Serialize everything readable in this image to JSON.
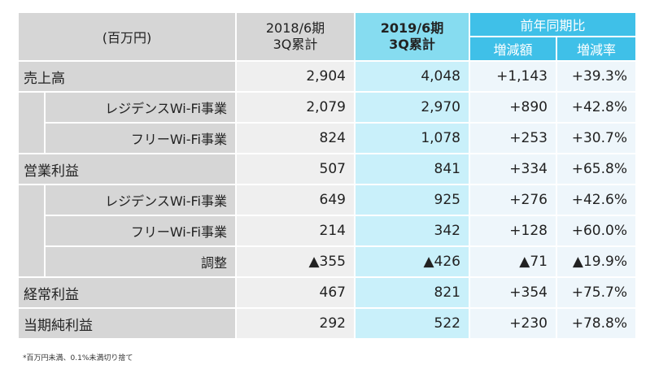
{
  "header": {
    "unit": "(百万円)",
    "prev_period": {
      "line1": "2018/6期",
      "line2": "3Q累計"
    },
    "cur_period": {
      "line1": "2019/6期",
      "line2": "3Q累計"
    },
    "yoy": "前年同期比",
    "yoy_amount": "増減額",
    "yoy_rate": "増減率"
  },
  "rows": {
    "sales": {
      "label": "売上高",
      "prev": "2,904",
      "cur": "4,048",
      "diff": "+1,143",
      "rate": "+39.3%"
    },
    "sales_residence": {
      "label": "レジデンスWi-Fi事業",
      "prev": "2,079",
      "cur": "2,970",
      "diff": "+890",
      "rate": "+42.8%"
    },
    "sales_free": {
      "label": "フリーWi-Fi事業",
      "prev": "824",
      "cur": "1,078",
      "diff": "+253",
      "rate": "+30.7%"
    },
    "op": {
      "label": "営業利益",
      "prev": "507",
      "cur": "841",
      "diff": "+334",
      "rate": "+65.8%"
    },
    "op_residence": {
      "label": "レジデンスWi-Fi事業",
      "prev": "649",
      "cur": "925",
      "diff": "+276",
      "rate": "+42.6%"
    },
    "op_free": {
      "label": "フリーWi-Fi事業",
      "prev": "214",
      "cur": "342",
      "diff": "+128",
      "rate": "+60.0%"
    },
    "op_adjust": {
      "label": "調整",
      "prev": "▲355",
      "cur": "▲426",
      "diff": "▲71",
      "rate": "▲19.9%"
    },
    "ordinary": {
      "label": "経常利益",
      "prev": "467",
      "cur": "821",
      "diff": "+354",
      "rate": "+75.7%"
    },
    "net": {
      "label": "当期純利益",
      "prev": "292",
      "cur": "522",
      "diff": "+230",
      "rate": "+78.8%"
    }
  },
  "footnote": "*百万円未満、0.1%未満切り捨て"
}
